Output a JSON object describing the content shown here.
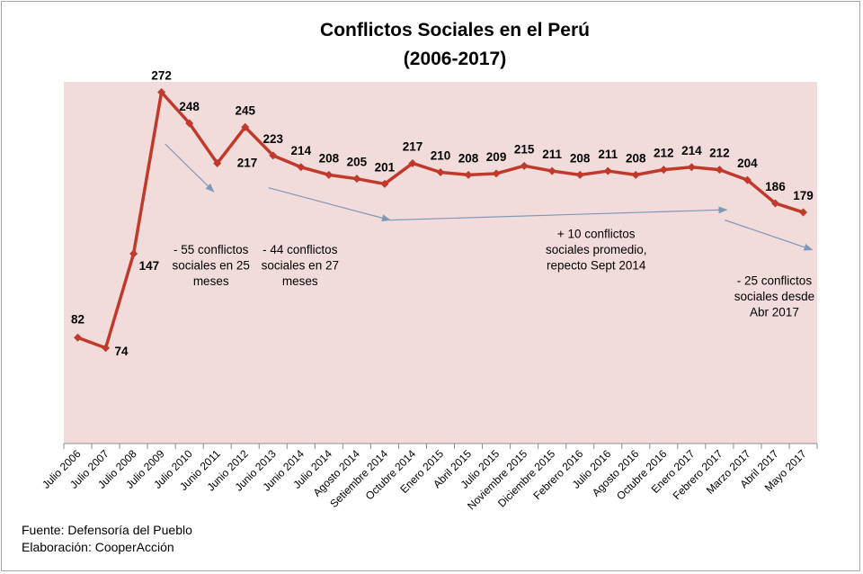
{
  "chart_data": {
    "type": "line",
    "title": [
      "Conflictos Sociales en el Perú",
      "(2006-2017)"
    ],
    "categories": [
      "Julio 2006",
      "Julio 2007",
      "Julio 2008",
      "Julio 2009",
      "Julio 2010",
      "Junio 2011",
      "Junio 2012",
      "Junio 2013",
      "Junio 2014",
      "Julio 2014",
      "Agosto 2014",
      "Setiembre 2014",
      "Octubre 2014",
      "Enero 2015",
      "Abril 2015",
      "Julio 2015",
      "Noviembre 2015",
      "Diciembre 2015",
      "Febrero 2016",
      "Julio 2016",
      "Agosto 2016",
      "Octubre 2016",
      "Enero 2017",
      "Febrero 2017",
      "Marzo 2017",
      "Abril 2017",
      "Mayo 2017"
    ],
    "values": [
      82,
      74,
      147,
      272,
      248,
      217,
      245,
      223,
      214,
      208,
      205,
      201,
      217,
      210,
      208,
      209,
      215,
      211,
      208,
      211,
      208,
      212,
      214,
      212,
      204,
      186,
      179
    ],
    "ylim": [
      0,
      280
    ],
    "grid": false,
    "legend": "none",
    "colors": {
      "line": "#c0392b",
      "plot_background": "#f2dcdb",
      "arrow": "#7f98b8"
    },
    "annotations": [
      {
        "lines": [
          "- 55 conflictos",
          "sociales en 25",
          "meses"
        ]
      },
      {
        "lines": [
          "- 44 conflictos",
          "sociales en 27",
          "meses"
        ]
      },
      {
        "lines": [
          "+ 10 conflictos",
          "sociales promedio,",
          "repecto Sept 2014"
        ]
      },
      {
        "lines": [
          "- 25 conflictos",
          "sociales desde",
          "Abr 2017"
        ]
      }
    ]
  },
  "footer": {
    "source": "Fuente: Defensoría del Pueblo",
    "credit": "Elaboración: CooperAcción"
  }
}
